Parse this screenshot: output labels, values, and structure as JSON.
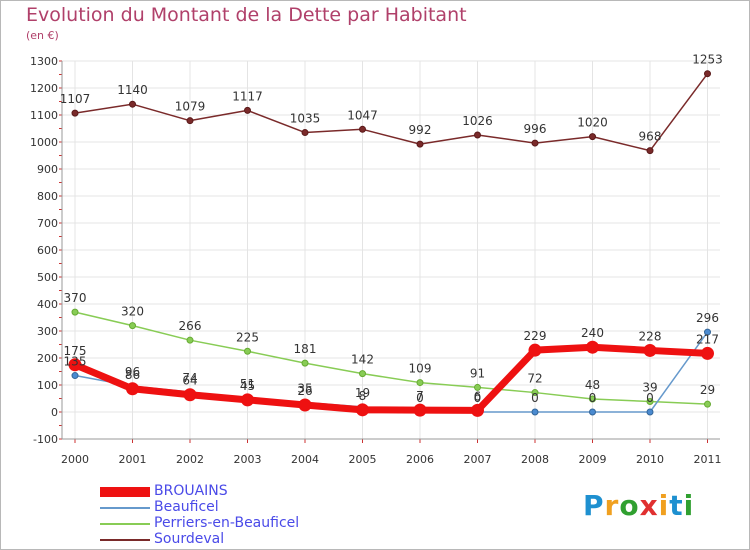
{
  "chart_data": {
    "type": "line",
    "title": "Evolution du Montant de la Dette par Habitant",
    "subtitle": "(en €)",
    "xlabel": "",
    "ylabel": "",
    "ylim": [
      -100,
      1300
    ],
    "yticks": [
      "-100",
      "0",
      "100",
      "200",
      "300",
      "400",
      "500",
      "600",
      "700",
      "800",
      "900",
      "1000",
      "1100",
      "1200",
      "1300"
    ],
    "ytick_values": [
      -100,
      0,
      100,
      200,
      300,
      400,
      500,
      600,
      700,
      800,
      900,
      1000,
      1100,
      1200,
      1300
    ],
    "categories": [
      "2000",
      "2001",
      "2002",
      "2003",
      "2004",
      "2005",
      "2006",
      "2007",
      "2008",
      "2009",
      "2010",
      "2011"
    ],
    "grid": true,
    "legend_position": "bottom-left",
    "series": [
      {
        "name": "Sourdeval",
        "color": "#7a2a2a",
        "values": [
          1107,
          1140,
          1079,
          1117,
          1035,
          1047,
          992,
          1026,
          996,
          1020,
          968,
          1253
        ],
        "labels": [
          "1107",
          "1140",
          "1079",
          "1117",
          "1035",
          "1047",
          "992",
          "1026",
          "996",
          "1020",
          "968",
          "1253"
        ]
      },
      {
        "name": "Perriers-en-Beauficel",
        "color": "#88cc55",
        "values": [
          370,
          320,
          266,
          225,
          181,
          142,
          109,
          91,
          72,
          48,
          39,
          29
        ],
        "labels": [
          "370",
          "320",
          "266",
          "225",
          "181",
          "142",
          "109",
          "91",
          "72",
          "48",
          "39",
          "29"
        ]
      },
      {
        "name": "Beauficel",
        "color": "#6699cc",
        "values": [
          135,
          96,
          74,
          51,
          35,
          19,
          0,
          0,
          0,
          0,
          0,
          296
        ],
        "labels": [
          "135",
          "96",
          "74",
          "51",
          "35",
          "19",
          "0",
          "0",
          "0",
          "0",
          "0",
          "296"
        ]
      },
      {
        "name": "BROUAINS",
        "color": "#ee1111",
        "values": [
          175,
          86,
          64,
          45,
          26,
          8,
          7,
          6,
          229,
          240,
          228,
          217
        ],
        "labels": [
          "175",
          "86",
          "64",
          "45",
          "26",
          "8",
          "7",
          "6",
          "229",
          "240",
          "228",
          "217"
        ]
      }
    ],
    "legend": [
      {
        "name": "BROUAINS",
        "color": "#ee1111",
        "thickness": 10
      },
      {
        "name": "Beauficel",
        "color": "#6699cc",
        "thickness": 2
      },
      {
        "name": "Perriers-en-Beauficel",
        "color": "#88cc55",
        "thickness": 2
      },
      {
        "name": "Sourdeval",
        "color": "#7a2a2a",
        "thickness": 2
      }
    ]
  },
  "logo": {
    "letters": [
      "P",
      "r",
      "o",
      "x",
      "i",
      "t",
      "i"
    ],
    "colors": [
      "#1e90d0",
      "#f0a020",
      "#30a030",
      "#e03030",
      "#f0a020",
      "#1e90d0",
      "#30a030"
    ]
  }
}
